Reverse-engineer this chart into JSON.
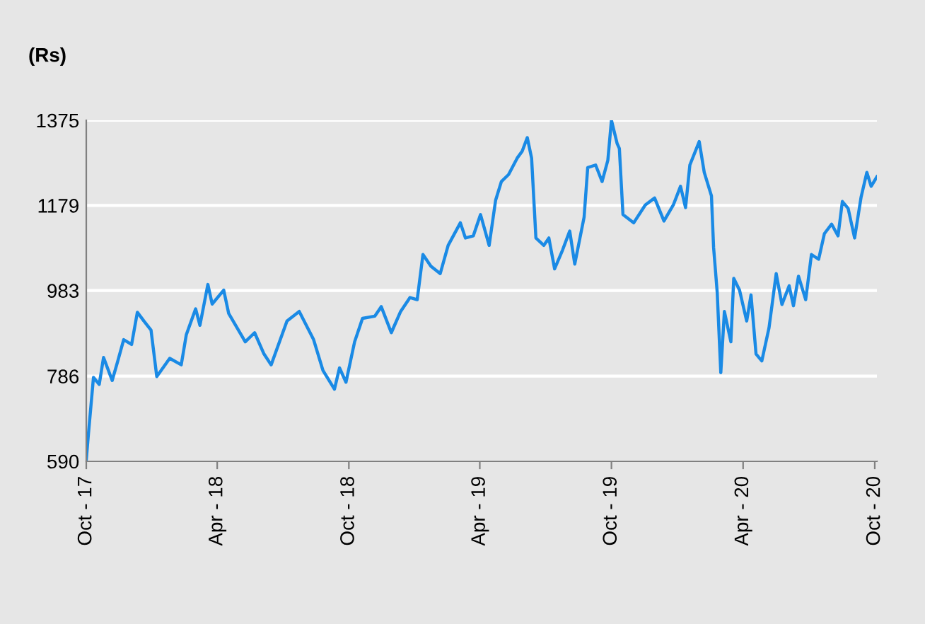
{
  "chart_data": {
    "type": "line",
    "ylabel": "(Rs)",
    "x": [
      "2017-10-01",
      "2017-10-04",
      "2017-10-11",
      "2017-10-19",
      "2017-10-25",
      "2017-11-06",
      "2017-11-13",
      "2017-11-22",
      "2017-12-03",
      "2017-12-11",
      "2017-12-20",
      "2017-12-30",
      "2018-01-07",
      "2018-01-25",
      "2018-02-10",
      "2018-02-17",
      "2018-03-02",
      "2018-03-08",
      "2018-03-19",
      "2018-03-25",
      "2018-04-10",
      "2018-04-17",
      "2018-05-10",
      "2018-05-23",
      "2018-06-05",
      "2018-06-15",
      "2018-07-07",
      "2018-07-24",
      "2018-08-13",
      "2018-08-26",
      "2018-09-11",
      "2018-09-18",
      "2018-09-27",
      "2018-10-09",
      "2018-10-20",
      "2018-11-06",
      "2018-11-15",
      "2018-11-29",
      "2018-12-12",
      "2018-12-25",
      "2019-01-04",
      "2019-01-12",
      "2019-01-23",
      "2019-02-05",
      "2019-02-16",
      "2019-03-05",
      "2019-03-12",
      "2019-03-23",
      "2019-04-02",
      "2019-04-14",
      "2019-04-23",
      "2019-05-01",
      "2019-05-11",
      "2019-05-23",
      "2019-05-30",
      "2019-06-06",
      "2019-06-12",
      "2019-06-18",
      "2019-06-29",
      "2019-07-06",
      "2019-07-14",
      "2019-07-25",
      "2019-08-04",
      "2019-08-11",
      "2019-08-24",
      "2019-08-29",
      "2019-09-09",
      "2019-09-18",
      "2019-09-26",
      "2019-10-01",
      "2019-10-09",
      "2019-10-12",
      "2019-10-17",
      "2019-11-01",
      "2019-11-17",
      "2019-11-30",
      "2019-12-13",
      "2019-12-26",
      "2020-01-05",
      "2020-01-12",
      "2020-01-18",
      "2020-01-31",
      "2020-02-07",
      "2020-02-17",
      "2020-02-20",
      "2020-02-25",
      "2020-03-01",
      "2020-03-06",
      "2020-03-15",
      "2020-03-19",
      "2020-03-27",
      "2020-04-06",
      "2020-04-12",
      "2020-04-19",
      "2020-04-27",
      "2020-05-07",
      "2020-05-17",
      "2020-05-25",
      "2020-06-04",
      "2020-06-10",
      "2020-06-17",
      "2020-06-27",
      "2020-07-05",
      "2020-07-15",
      "2020-07-23",
      "2020-08-02",
      "2020-08-11",
      "2020-08-17",
      "2020-08-25",
      "2020-09-03",
      "2020-09-12",
      "2020-09-20",
      "2020-09-26",
      "2020-10-04"
    ],
    "series": [
      {
        "color": "#1a8ae5",
        "values": [
          593,
          653,
          783,
          767,
          829,
          776,
          816,
          870,
          859,
          933,
          913,
          892,
          785,
          827,
          812,
          881,
          941,
          903,
          997,
          952,
          984,
          930,
          865,
          886,
          837,
          812,
          913,
          935,
          870,
          799,
          756,
          805,
          772,
          865,
          919,
          924,
          946,
          886,
          935,
          967,
          962,
          1066,
          1039,
          1022,
          1087,
          1139,
          1104,
          1109,
          1158,
          1087,
          1191,
          1234,
          1250,
          1288,
          1304,
          1335,
          1288,
          1104,
          1087,
          1104,
          1033,
          1076,
          1120,
          1044,
          1152,
          1266,
          1272,
          1234,
          1283,
          1375,
          1321,
          1310,
          1158,
          1139,
          1180,
          1196,
          1143,
          1180,
          1223,
          1174,
          1272,
          1326,
          1255,
          1201,
          1082,
          979,
          794,
          935,
          865,
          1011,
          984,
          913,
          973,
          837,
          821,
          897,
          1022,
          951,
          994,
          948,
          1016,
          962,
          1066,
          1055,
          1114,
          1136,
          1109,
          1188,
          1172,
          1104,
          1198,
          1255,
          1223,
          1245
        ]
      }
    ],
    "xlim": [
      "2017-10-01",
      "2020-10-04"
    ],
    "xticks": [
      {
        "value": "2017-10-01",
        "label": "Oct - 17"
      },
      {
        "value": "2018-04-01",
        "label": "Apr - 18"
      },
      {
        "value": "2018-10-01",
        "label": "Oct - 18"
      },
      {
        "value": "2019-04-01",
        "label": "Apr - 19"
      },
      {
        "value": "2019-10-01",
        "label": "Oct - 19"
      },
      {
        "value": "2020-04-01",
        "label": "Apr - 20"
      },
      {
        "value": "2020-10-01",
        "label": "Oct - 20"
      }
    ],
    "ylim": [
      590,
      1375
    ],
    "yticks": [
      590,
      786,
      983,
      1179,
      1375
    ],
    "grid": "y",
    "line_style": "solid"
  }
}
